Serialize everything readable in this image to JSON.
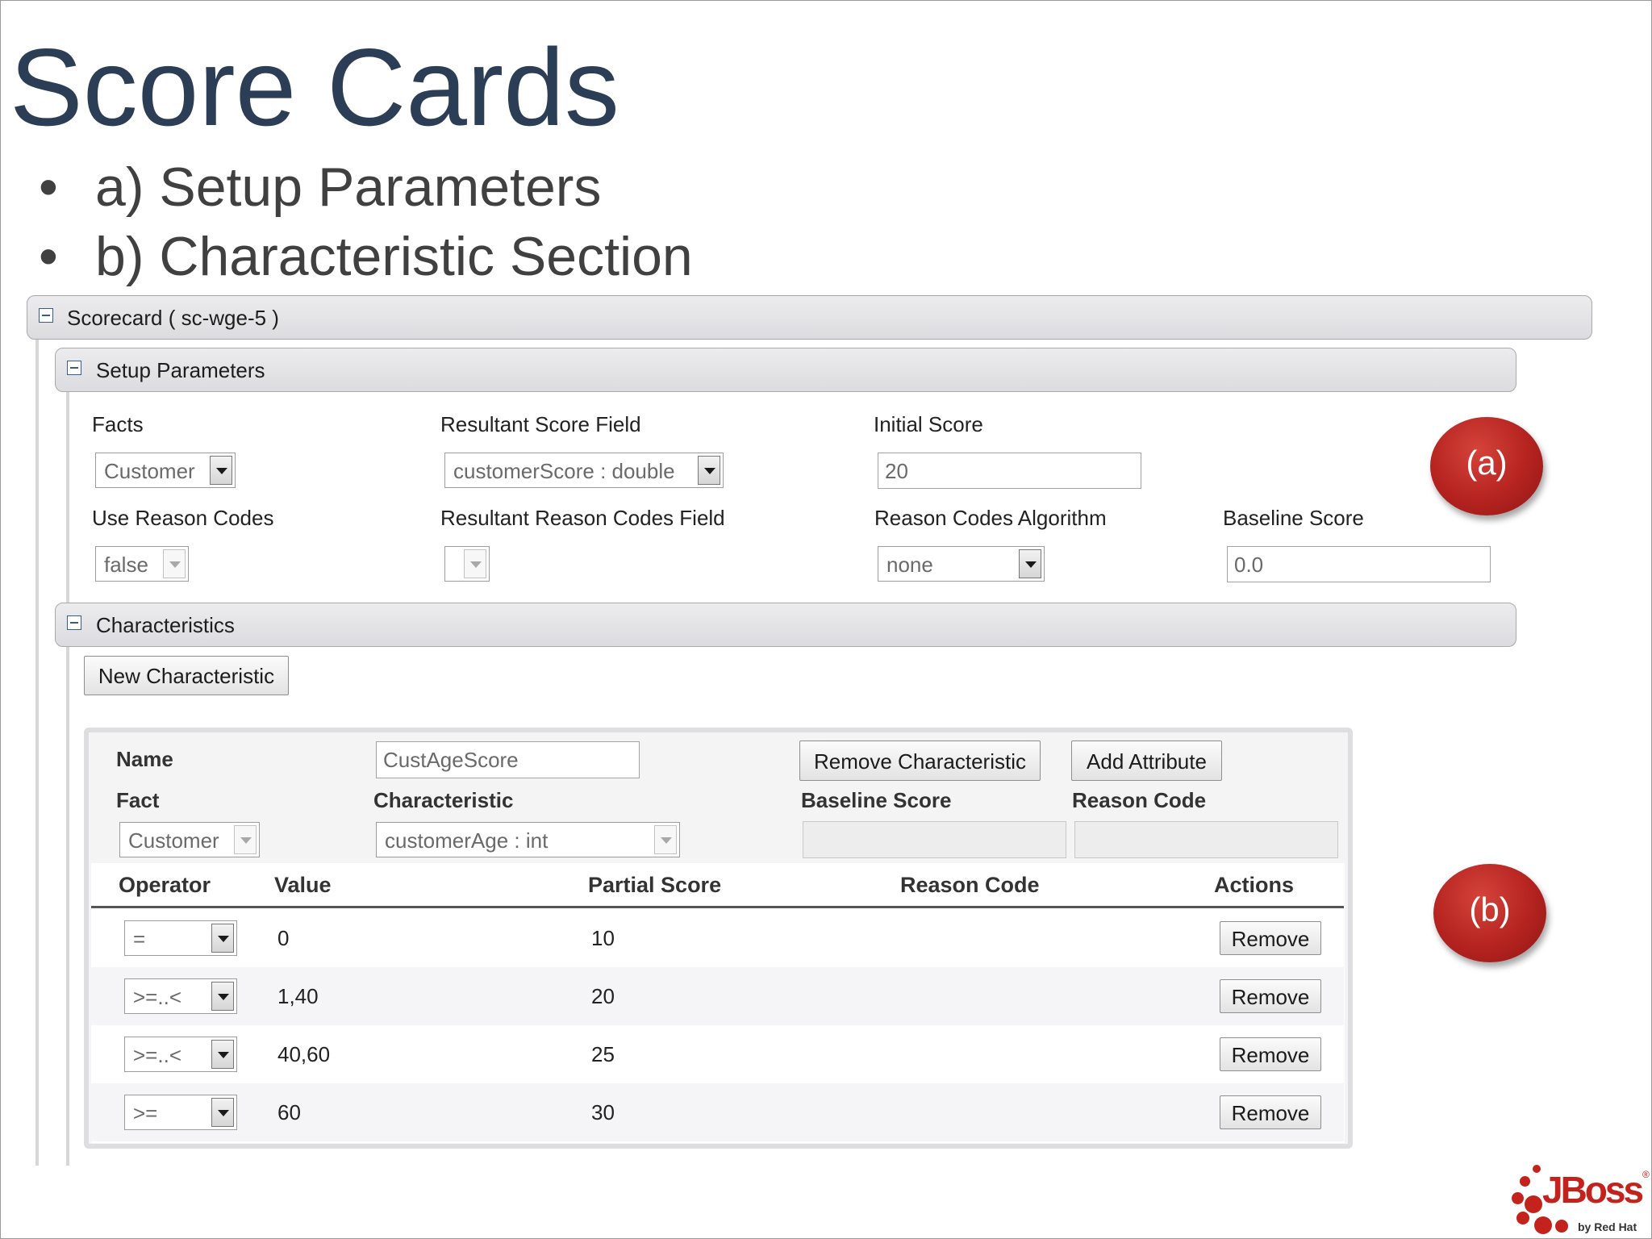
{
  "slide": {
    "title": "Score Cards",
    "bullets": [
      "a) Setup Parameters",
      "b) Characteristic Section"
    ],
    "bullet_char": "•"
  },
  "scorecard": {
    "header": "Scorecard ( sc-wge-5 )",
    "setup": {
      "header": "Setup Parameters",
      "facts_label": "Facts",
      "facts_value": "Customer",
      "score_field_label": "Resultant Score Field",
      "score_field_value": "customerScore : double",
      "initial_score_label": "Initial Score",
      "initial_score_value": "20",
      "use_reason_codes_label": "Use Reason Codes",
      "use_reason_codes_value": "false",
      "reason_codes_field_label": "Resultant Reason Codes Field",
      "reason_codes_field_value": "",
      "algorithm_label": "Reason Codes Algorithm",
      "algorithm_value": "none",
      "baseline_label": "Baseline Score",
      "baseline_value": "0.0"
    },
    "characteristics": {
      "header": "Characteristics",
      "new_button": "New Characteristic",
      "name_label": "Name",
      "name_value": "CustAgeScore",
      "remove_characteristic_button": "Remove Characteristic",
      "add_attribute_button": "Add Attribute",
      "fact_label": "Fact",
      "fact_value": "Customer",
      "characteristic_label": "Characteristic",
      "characteristic_value": "customerAge : int",
      "baseline_label": "Baseline Score",
      "baseline_value": "",
      "reason_code_label": "Reason Code",
      "reason_code_value": "",
      "table": {
        "columns": [
          "Operator",
          "Value",
          "Partial Score",
          "Reason Code",
          "Actions"
        ],
        "rows": [
          {
            "operator": "=",
            "value": "0",
            "partial_score": "10",
            "reason_code": "",
            "action": "Remove"
          },
          {
            "operator": ">=..<",
            "value": "1,40",
            "partial_score": "20",
            "reason_code": "",
            "action": "Remove"
          },
          {
            "operator": ">=..<",
            "value": "40,60",
            "partial_score": "25",
            "reason_code": "",
            "action": "Remove"
          },
          {
            "operator": ">=",
            "value": "60",
            "partial_score": "30",
            "reason_code": "",
            "action": "Remove"
          }
        ]
      }
    }
  },
  "annotations": {
    "a": "(a)",
    "b": "(b)"
  },
  "logo": {
    "main": "JBoss",
    "sub": "by Red Hat",
    "mark": "®"
  },
  "colors": {
    "title": "#2b3e55",
    "badge": "#b52320",
    "logo": "#c3231c"
  }
}
